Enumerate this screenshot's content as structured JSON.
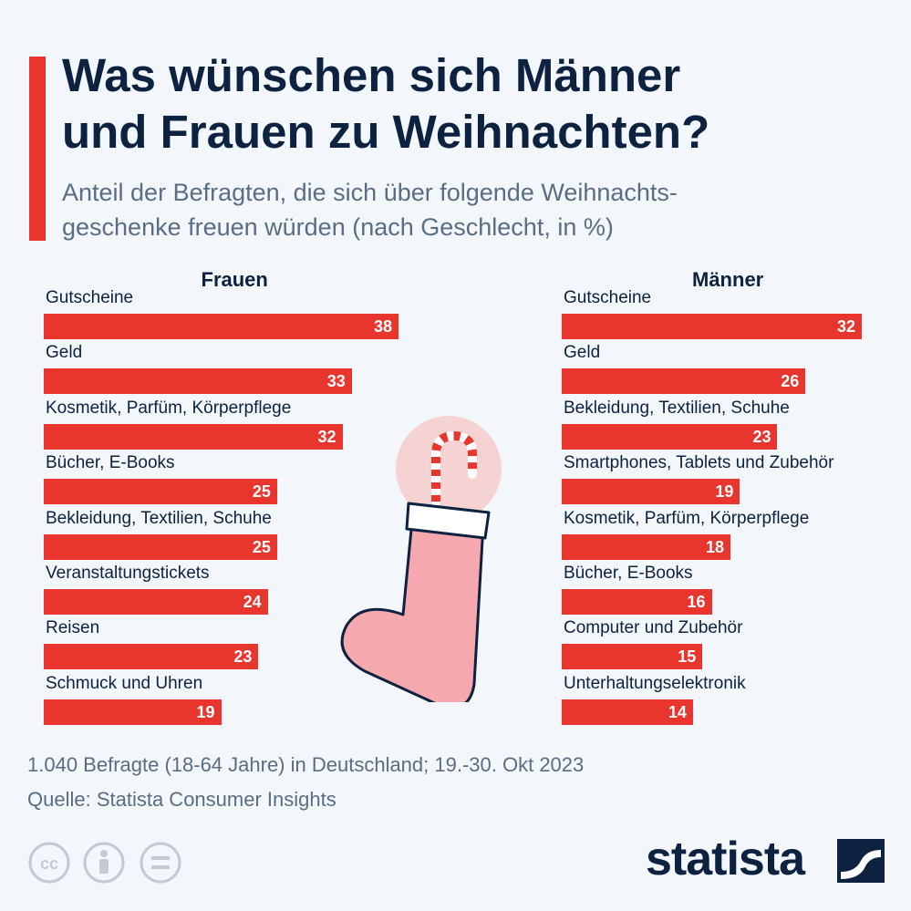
{
  "header": {
    "title": "Was wünschen sich Männer\nund Frauen zu Weihnachten?",
    "subtitle": "Anteil der Befragten, die sich über folgende Weihnachts-\ngeschenke freuen würden (nach Geschlecht, in %)"
  },
  "chart_data": [
    {
      "type": "bar",
      "orientation": "horizontal",
      "title": "Frauen",
      "categories": [
        "Gutscheine",
        "Geld",
        "Kosmetik, Parfüm, Körperpflege",
        "Bücher, E-Books",
        "Bekleidung, Textilien, Schuhe",
        "Veranstaltungstickets",
        "Reisen",
        "Schmuck und Uhren"
      ],
      "values": [
        38,
        33,
        32,
        25,
        25,
        24,
        23,
        19
      ],
      "unit": "%",
      "xlim": [
        0,
        38
      ],
      "grid": false,
      "color": "#e8352d"
    },
    {
      "type": "bar",
      "orientation": "horizontal",
      "title": "Männer",
      "categories": [
        "Gutscheine",
        "Geld",
        "Bekleidung, Textilien, Schuhe",
        "Smartphones, Tablets und Zubehör",
        "Kosmetik, Parfüm, Körperpflege",
        "Bücher, E-Books",
        "Computer und Zubehör",
        "Unterhaltungselektronik"
      ],
      "values": [
        32,
        26,
        23,
        19,
        18,
        16,
        15,
        14
      ],
      "unit": "%",
      "xlim": [
        0,
        32
      ],
      "grid": false,
      "color": "#e8352d"
    }
  ],
  "footer": {
    "note": "1.040 Befragte (18-64 Jahre) in Deutschland; 19.-30. Okt 2023",
    "source": "Quelle: Statista Consumer Insights",
    "brand": "statista",
    "license_icons": [
      "cc-icon",
      "attribution-icon",
      "no-derivatives-icon"
    ]
  },
  "colors": {
    "accent": "#e8352d",
    "navy": "#0d2240",
    "muted": "#5a6d85",
    "background": "#f3f6fa"
  }
}
